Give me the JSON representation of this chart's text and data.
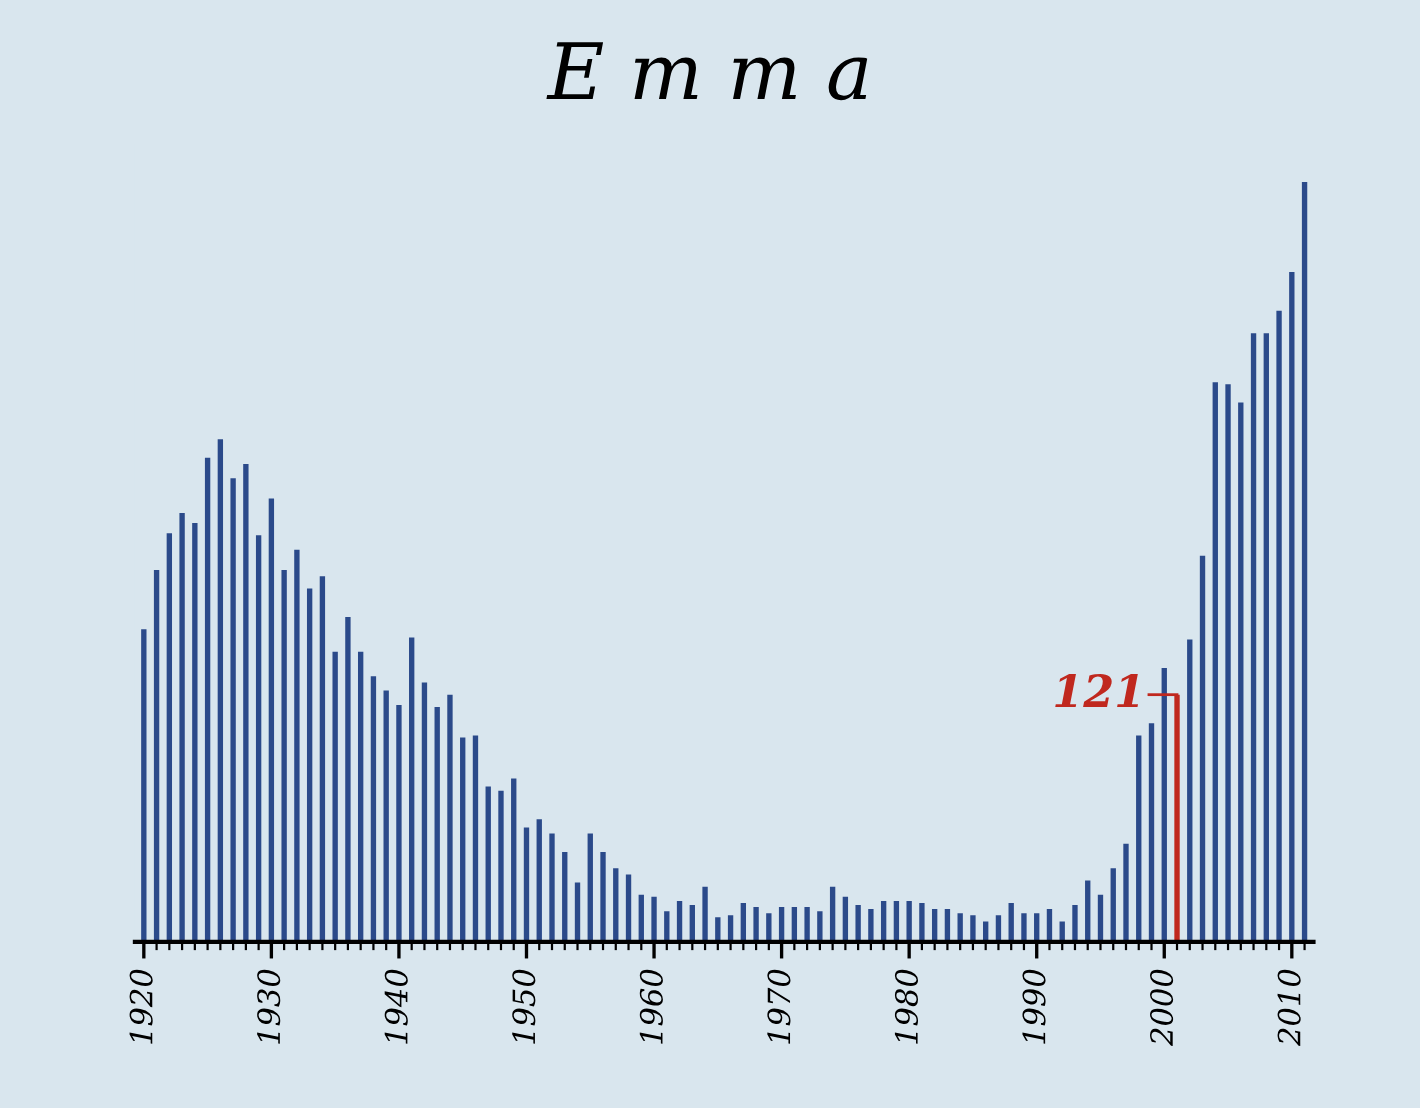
{
  "chart_data": {
    "type": "bar",
    "title": "E m m a",
    "x": [
      1920,
      1921,
      1922,
      1923,
      1924,
      1925,
      1926,
      1927,
      1928,
      1929,
      1930,
      1931,
      1932,
      1933,
      1934,
      1935,
      1936,
      1937,
      1938,
      1939,
      1940,
      1941,
      1942,
      1943,
      1944,
      1945,
      1946,
      1947,
      1948,
      1949,
      1950,
      1951,
      1952,
      1953,
      1954,
      1955,
      1956,
      1957,
      1958,
      1959,
      1960,
      1961,
      1962,
      1963,
      1964,
      1965,
      1966,
      1967,
      1968,
      1969,
      1970,
      1971,
      1972,
      1973,
      1974,
      1975,
      1976,
      1977,
      1978,
      1979,
      1980,
      1981,
      1982,
      1983,
      1984,
      1985,
      1986,
      1987,
      1988,
      1989,
      1990,
      1991,
      1992,
      1993,
      1994,
      1995,
      1996,
      1997,
      1998,
      1999,
      2000,
      2001,
      2002,
      2003,
      2004,
      2005,
      2006,
      2007,
      2008,
      2009,
      2010,
      2011
    ],
    "values": [
      153,
      182,
      200,
      210,
      205,
      237,
      246,
      227,
      234,
      199,
      217,
      182,
      192,
      173,
      179,
      142,
      159,
      142,
      130,
      123,
      116,
      149,
      127,
      115,
      121,
      100,
      101,
      76,
      74,
      80,
      56,
      60,
      53,
      44,
      29,
      53,
      44,
      36,
      33,
      23,
      22,
      15,
      20,
      18,
      27,
      12,
      13,
      19,
      17,
      14,
      17,
      17,
      17,
      15,
      27,
      22,
      18,
      16,
      20,
      20,
      20,
      19,
      16,
      16,
      14,
      13,
      10,
      13,
      19,
      14,
      14,
      16,
      10,
      18,
      30,
      23,
      36,
      48,
      101,
      107,
      134,
      121,
      148,
      189,
      274,
      273,
      264,
      298,
      298,
      309,
      328,
      372
    ],
    "colors": [
      "#2b4a8a",
      "#2b4a8a",
      "#2b4a8a",
      "#2b4a8a",
      "#2b4a8a",
      "#2b4a8a",
      "#2b4a8a",
      "#2b4a8a",
      "#2b4a8a",
      "#2b4a8a",
      "#2b4a8a",
      "#2b4a8a",
      "#2b4a8a",
      "#2b4a8a",
      "#2b4a8a",
      "#2b4a8a",
      "#2b4a8a",
      "#2b4a8a",
      "#2b4a8a",
      "#2b4a8a",
      "#2b4a8a",
      "#2b4a8a",
      "#2b4a8a",
      "#2b4a8a",
      "#2b4a8a",
      "#2b4a8a",
      "#2b4a8a",
      "#2b4a8a",
      "#2b4a8a",
      "#2b4a8a",
      "#2b4a8a",
      "#2b4a8a",
      "#2b4a8a",
      "#2b4a8a",
      "#2b4a8a",
      "#2b4a8a",
      "#2b4a8a",
      "#2b4a8a",
      "#2b4a8a",
      "#2b4a8a",
      "#2b4a8a",
      "#2b4a8a",
      "#2b4a8a",
      "#2b4a8a",
      "#2b4a8a",
      "#2b4a8a",
      "#2b4a8a",
      "#2b4a8a",
      "#2b4a8a",
      "#2b4a8a",
      "#2b4a8a",
      "#2b4a8a",
      "#2b4a8a",
      "#2b4a8a",
      "#2b4a8a",
      "#2b4a8a",
      "#2b4a8a",
      "#2b4a8a",
      "#2b4a8a",
      "#2b4a8a",
      "#2b4a8a",
      "#2b4a8a",
      "#2b4a8a",
      "#2b4a8a",
      "#2b4a8a",
      "#2b4a8a",
      "#2b4a8a",
      "#2b4a8a",
      "#2b4a8a",
      "#2b4a8a",
      "#2b4a8a",
      "#2b4a8a",
      "#2b4a8a",
      "#2b4a8a",
      "#2b4a8a",
      "#2b4a8a",
      "#2b4a8a",
      "#2b4a8a",
      "#2b4a8a",
      "#2b4a8a",
      "#2b4a8a",
      "#c0281e",
      "#2b4a8a",
      "#2b4a8a",
      "#2b4a8a",
      "#2b4a8a",
      "#2b4a8a",
      "#2b4a8a",
      "#2b4a8a",
      "#2b4a8a",
      "#2b4a8a",
      "#2b4a8a"
    ],
    "value_labels": [
      null,
      null,
      null,
      null,
      null,
      null,
      null,
      null,
      null,
      null,
      null,
      null,
      null,
      null,
      null,
      null,
      null,
      null,
      null,
      null,
      null,
      null,
      null,
      null,
      null,
      null,
      null,
      null,
      null,
      null,
      null,
      null,
      null,
      null,
      null,
      null,
      null,
      null,
      null,
      null,
      null,
      null,
      null,
      null,
      null,
      null,
      null,
      null,
      null,
      null,
      null,
      null,
      null,
      null,
      null,
      null,
      null,
      null,
      null,
      null,
      null,
      null,
      null,
      null,
      null,
      null,
      null,
      null,
      null,
      null,
      null,
      null,
      null,
      null,
      null,
      null,
      null,
      null,
      null,
      null,
      null,
      "121",
      null,
      null,
      null,
      null,
      null,
      null,
      null,
      null,
      null,
      null
    ],
    "xlim": [
      1919.3,
      2011.7
    ],
    "xticks": [
      1920,
      1930,
      1940,
      1950,
      1960,
      1970,
      1980,
      1990,
      2000,
      2010
    ],
    "tick_labels": "x",
    "grid": false
  }
}
